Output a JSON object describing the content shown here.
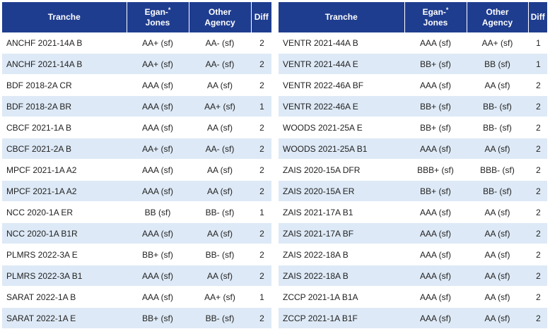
{
  "headers": {
    "tranche": "Tranche",
    "egan_jones_line1": "Egan-",
    "egan_jones_line2": "Jones",
    "egan_jones_mark": "*",
    "other_agency_line1": "Other",
    "other_agency_line2": "Agency",
    "diff": "Diff"
  },
  "left_rows": [
    {
      "tranche": "ANCHF 2021-14A B",
      "egan_jones": "AA+ (sf)",
      "other_agency": "AA- (sf)",
      "diff": "2"
    },
    {
      "tranche": "ANCHF 2021-14A B",
      "egan_jones": "AA+ (sf)",
      "other_agency": "AA- (sf)",
      "diff": "2"
    },
    {
      "tranche": "BDF 2018-2A CR",
      "egan_jones": "AAA (sf)",
      "other_agency": "AA (sf)",
      "diff": "2"
    },
    {
      "tranche": "BDF 2018-2A BR",
      "egan_jones": "AAA (sf)",
      "other_agency": "AA+ (sf)",
      "diff": "1"
    },
    {
      "tranche": "CBCF 2021-1A B",
      "egan_jones": "AAA (sf)",
      "other_agency": "AA (sf)",
      "diff": "2"
    },
    {
      "tranche": "CBCF 2021-2A B",
      "egan_jones": "AA+ (sf)",
      "other_agency": "AA- (sf)",
      "diff": "2"
    },
    {
      "tranche": "MPCF 2021-1A A2",
      "egan_jones": "AAA (sf)",
      "other_agency": "AA (sf)",
      "diff": "2"
    },
    {
      "tranche": "MPCF 2021-1A A2",
      "egan_jones": "AAA (sf)",
      "other_agency": "AA (sf)",
      "diff": "2"
    },
    {
      "tranche": "NCC 2020-1A ER",
      "egan_jones": "BB (sf)",
      "other_agency": "BB- (sf)",
      "diff": "1"
    },
    {
      "tranche": "NCC 2020-1A B1R",
      "egan_jones": "AAA (sf)",
      "other_agency": "AA (sf)",
      "diff": "2"
    },
    {
      "tranche": "PLMRS 2022-3A E",
      "egan_jones": "BB+ (sf)",
      "other_agency": "BB- (sf)",
      "diff": "2"
    },
    {
      "tranche": "PLMRS 2022-3A B1",
      "egan_jones": "AAA (sf)",
      "other_agency": "AA (sf)",
      "diff": "2"
    },
    {
      "tranche": "SARAT 2022-1A B",
      "egan_jones": "AAA (sf)",
      "other_agency": "AA+ (sf)",
      "diff": "1"
    },
    {
      "tranche": "SARAT 2022-1A E",
      "egan_jones": "BB+ (sf)",
      "other_agency": "BB- (sf)",
      "diff": "2"
    }
  ],
  "right_rows": [
    {
      "tranche": "VENTR 2021-44A B",
      "egan_jones": "AAA (sf)",
      "other_agency": "AA+ (sf)",
      "diff": "1"
    },
    {
      "tranche": "VENTR 2021-44A E",
      "egan_jones": "BB+ (sf)",
      "other_agency": "BB (sf)",
      "diff": "1"
    },
    {
      "tranche": "VENTR 2022-46A BF",
      "egan_jones": "AAA (sf)",
      "other_agency": "AA (sf)",
      "diff": "2"
    },
    {
      "tranche": "VENTR 2022-46A E",
      "egan_jones": "BB+ (sf)",
      "other_agency": "BB- (sf)",
      "diff": "2"
    },
    {
      "tranche": "WOODS 2021-25A E",
      "egan_jones": "BB+ (sf)",
      "other_agency": "BB- (sf)",
      "diff": "2"
    },
    {
      "tranche": "WOODS 2021-25A B1",
      "egan_jones": "AAA (sf)",
      "other_agency": "AA (sf)",
      "diff": "2"
    },
    {
      "tranche": "ZAIS 2020-15A DFR",
      "egan_jones": "BBB+ (sf)",
      "other_agency": "BBB- (sf)",
      "diff": "2"
    },
    {
      "tranche": "ZAIS 2020-15A ER",
      "egan_jones": "BB+ (sf)",
      "other_agency": "BB- (sf)",
      "diff": "2"
    },
    {
      "tranche": "ZAIS 2021-17A B1",
      "egan_jones": "AAA (sf)",
      "other_agency": "AA (sf)",
      "diff": "2"
    },
    {
      "tranche": "ZAIS 2021-17A BF",
      "egan_jones": "AAA (sf)",
      "other_agency": "AA (sf)",
      "diff": "2"
    },
    {
      "tranche": "ZAIS 2022-18A B",
      "egan_jones": "AAA (sf)",
      "other_agency": "AA (sf)",
      "diff": "2"
    },
    {
      "tranche": "ZAIS 2022-18A B",
      "egan_jones": "AAA (sf)",
      "other_agency": "AA (sf)",
      "diff": "2"
    },
    {
      "tranche": "ZCCP 2021-1A B1A",
      "egan_jones": "AAA (sf)",
      "other_agency": "AA (sf)",
      "diff": "2"
    },
    {
      "tranche": "ZCCP 2021-1A B1F",
      "egan_jones": "AAA (sf)",
      "other_agency": "AA (sf)",
      "diff": "2"
    }
  ],
  "colors": {
    "header_bg": "#1f3d8f",
    "header_text": "#ffffff",
    "stripe_bg": "#dde9f6",
    "row_bg": "#ffffff"
  }
}
